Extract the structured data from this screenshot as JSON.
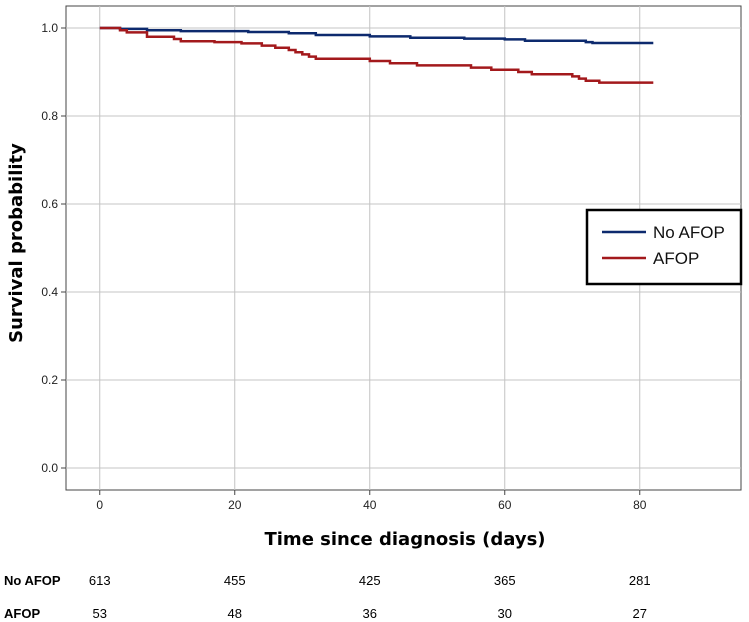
{
  "chart_data": {
    "type": "line",
    "subtype": "kaplan-meier step",
    "xlabel": "Time since diagnosis (days)",
    "ylabel": "Survival probability",
    "xlim": [
      -5,
      95
    ],
    "ylim": [
      -0.05,
      1.05
    ],
    "xticks": [
      0,
      20,
      40,
      60,
      80
    ],
    "yticks": [
      0.0,
      0.2,
      0.4,
      0.6,
      0.8,
      1.0
    ],
    "xtick_labels": [
      "0",
      "20",
      "40",
      "60",
      "80"
    ],
    "ytick_labels": [
      "0.0",
      "0.2",
      "0.4",
      "0.6",
      "0.8",
      "1.0"
    ],
    "grid": true,
    "legend_position": "right",
    "series": [
      {
        "name": "No AFOP",
        "color": "#0d2a6e",
        "steps": [
          [
            0,
            1.0
          ],
          [
            3,
            0.998
          ],
          [
            7,
            0.995
          ],
          [
            12,
            0.993
          ],
          [
            22,
            0.991
          ],
          [
            28,
            0.988
          ],
          [
            32,
            0.984
          ],
          [
            40,
            0.981
          ],
          [
            46,
            0.978
          ],
          [
            54,
            0.976
          ],
          [
            60,
            0.974
          ],
          [
            63,
            0.971
          ],
          [
            72,
            0.968
          ],
          [
            73,
            0.966
          ],
          [
            82,
            0.966
          ]
        ]
      },
      {
        "name": "AFOP",
        "color": "#a3191c",
        "steps": [
          [
            0,
            1.0
          ],
          [
            3,
            0.995
          ],
          [
            4,
            0.99
          ],
          [
            7,
            0.98
          ],
          [
            11,
            0.975
          ],
          [
            12,
            0.97
          ],
          [
            17,
            0.968
          ],
          [
            21,
            0.965
          ],
          [
            24,
            0.96
          ],
          [
            26,
            0.955
          ],
          [
            28,
            0.95
          ],
          [
            29,
            0.945
          ],
          [
            30,
            0.94
          ],
          [
            31,
            0.935
          ],
          [
            32,
            0.93
          ],
          [
            40,
            0.925
          ],
          [
            43,
            0.92
          ],
          [
            47,
            0.915
          ],
          [
            55,
            0.91
          ],
          [
            58,
            0.905
          ],
          [
            62,
            0.9
          ],
          [
            64,
            0.895
          ],
          [
            70,
            0.89
          ],
          [
            71,
            0.885
          ],
          [
            72,
            0.88
          ],
          [
            74,
            0.876
          ],
          [
            82,
            0.876
          ]
        ]
      }
    ],
    "risk_table": {
      "times": [
        0,
        20,
        40,
        60,
        80
      ],
      "rows": [
        {
          "name": "No AFOP",
          "values": [
            "613",
            "455",
            "425",
            "365",
            "281"
          ]
        },
        {
          "name": "AFOP",
          "values": [
            "53",
            "48",
            "36",
            "30",
            "27"
          ]
        }
      ]
    }
  }
}
